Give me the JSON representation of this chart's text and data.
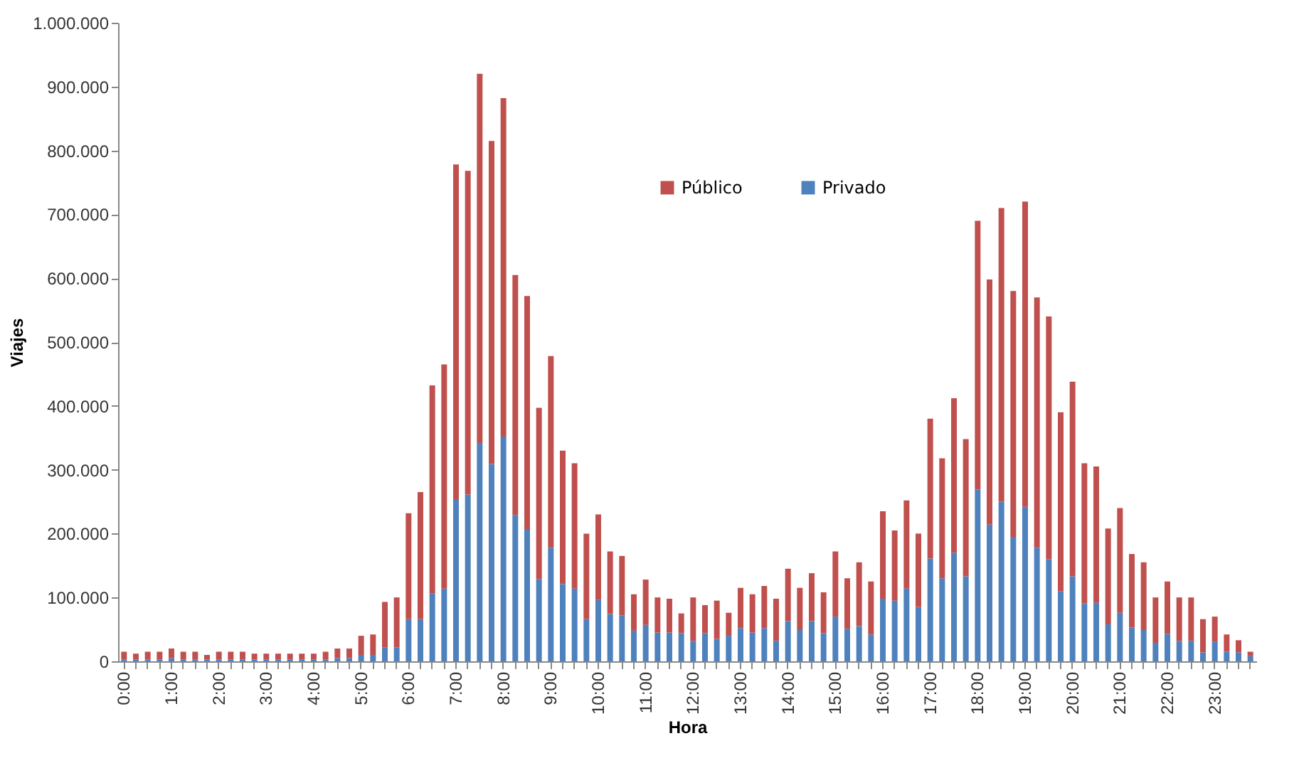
{
  "chart_data": {
    "type": "bar",
    "stacked": true,
    "xlabel": "Hora",
    "ylabel": "Viajes",
    "legend": "top",
    "grid": false,
    "categories": [
      "0:00",
      null,
      null,
      null,
      "1:00",
      null,
      null,
      null,
      "2:00",
      null,
      null,
      null,
      "3:00",
      null,
      null,
      null,
      "4:00",
      null,
      null,
      null,
      "5:00",
      null,
      null,
      null,
      "6:00",
      null,
      null,
      null,
      "7:00",
      null,
      null,
      null,
      "8:00",
      null,
      null,
      null,
      "9:00",
      null,
      null,
      null,
      "10:00",
      null,
      null,
      null,
      "11:00",
      null,
      null,
      null,
      "12:00",
      null,
      null,
      null,
      "13:00",
      null,
      null,
      null,
      "14:00",
      null,
      null,
      null,
      "15:00",
      null,
      null,
      null,
      "16:00",
      null,
      null,
      null,
      "17:00",
      null,
      null,
      null,
      "18:00",
      null,
      null,
      null,
      "19:00",
      null,
      null,
      null,
      "20:00",
      null,
      null,
      null,
      "21:00",
      null,
      null,
      null,
      "22:00",
      null,
      null,
      null,
      "23:00",
      null,
      null,
      null
    ],
    "ylim": [
      0,
      1000000
    ],
    "yticks": [
      {
        "value": 0,
        "label": "0"
      },
      {
        "value": 100000,
        "label": "100.000"
      },
      {
        "value": 200000,
        "label": "200.000"
      },
      {
        "value": 300000,
        "label": "300.000"
      },
      {
        "value": 400000,
        "label": "400.000"
      },
      {
        "value": 500000,
        "label": "500.000"
      },
      {
        "value": 600000,
        "label": "600.000"
      },
      {
        "value": 700000,
        "label": "700.000"
      },
      {
        "value": 800000,
        "label": "800.000"
      },
      {
        "value": 900000,
        "label": "900.000"
      },
      {
        "value": 1000000,
        "label": "1.000.000"
      }
    ],
    "series": [
      {
        "name": "Privado",
        "color": "#4f81bd",
        "values": [
          3000,
          3000,
          3000,
          3000,
          5000,
          3000,
          3000,
          3000,
          3000,
          3000,
          3000,
          3000,
          3000,
          3000,
          3000,
          3000,
          3000,
          3000,
          5000,
          5000,
          10000,
          10000,
          22000,
          22000,
          66000,
          66000,
          106000,
          114000,
          254000,
          261000,
          342000,
          309000,
          352000,
          229000,
          206000,
          129000,
          178000,
          121000,
          114000,
          66000,
          96000,
          74000,
          72000,
          48000,
          57000,
          45000,
          45000,
          44000,
          32000,
          44000,
          35000,
          40000,
          52000,
          45000,
          52000,
          32000,
          63000,
          49000,
          63000,
          44000,
          70000,
          51000,
          55000,
          42000,
          98000,
          95000,
          114000,
          85000,
          161000,
          130000,
          170000,
          133000,
          269000,
          214000,
          250000,
          195000,
          242000,
          178000,
          160000,
          110000,
          133000,
          91000,
          92000,
          58000,
          76000,
          53000,
          49000,
          29000,
          43000,
          32000,
          32000,
          14000,
          31000,
          15000,
          14000,
          8000
        ]
      },
      {
        "name": "Público",
        "color": "#c0504d",
        "values": [
          12000,
          9000,
          12000,
          12000,
          15000,
          12000,
          12000,
          7000,
          12000,
          12000,
          12000,
          9000,
          9000,
          9000,
          9000,
          9000,
          9000,
          12000,
          15000,
          15000,
          30000,
          32000,
          71000,
          78000,
          166000,
          199000,
          326000,
          351000,
          524000,
          507000,
          578000,
          506000,
          530000,
          376000,
          366000,
          268000,
          300000,
          209000,
          196000,
          134000,
          134000,
          98000,
          93000,
          57000,
          71000,
          55000,
          53000,
          31000,
          68000,
          44000,
          60000,
          36000,
          63000,
          60000,
          66000,
          66000,
          82000,
          66000,
          75000,
          64000,
          102000,
          79000,
          100000,
          83000,
          137000,
          110000,
          138000,
          115000,
          219000,
          188000,
          242000,
          215000,
          421000,
          384000,
          460000,
          385000,
          478000,
          392000,
          380000,
          280000,
          305000,
          219000,
          213000,
          150000,
          164000,
          115000,
          106000,
          71000,
          82000,
          68000,
          68000,
          52000,
          39000,
          27000,
          19000,
          7000
        ]
      }
    ]
  }
}
